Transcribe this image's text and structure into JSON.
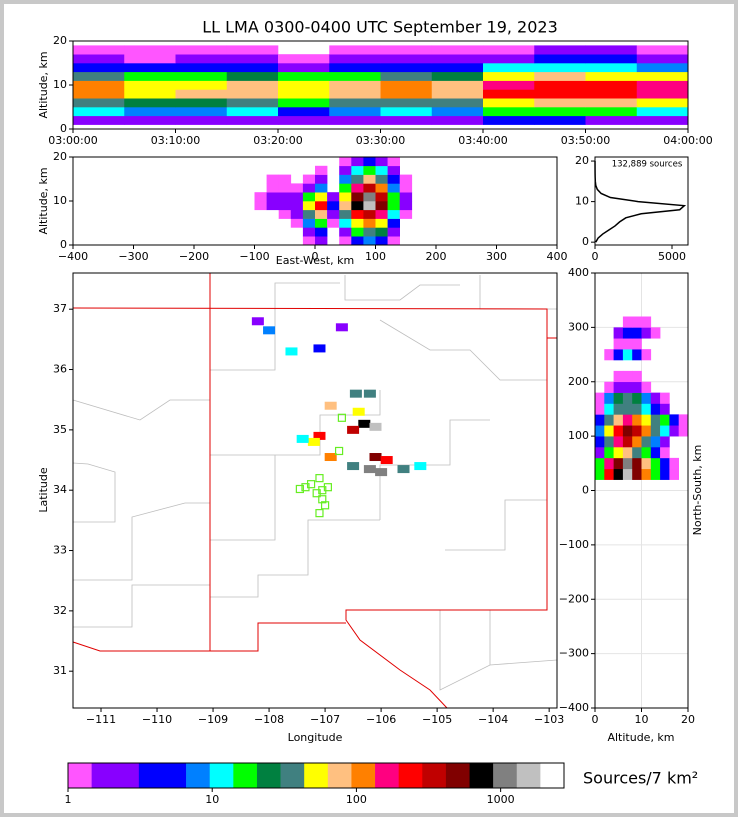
{
  "chart_data": [
    {
      "type": "heatmap",
      "title": "LL LMA 0300-0400 UTC September 19, 2023",
      "y_label": "Altitude, km",
      "xlim": [
        "03:00:00",
        "04:00:00"
      ],
      "xticks": [
        "03:00:00",
        "03:10:00",
        "03:20:00",
        "03:30:00",
        "03:40:00",
        "03:50:00",
        "04:00:00"
      ],
      "ylim": [
        0,
        20
      ],
      "yticks": [
        0,
        10,
        20
      ],
      "x": [
        "03:02:30",
        "03:07:30",
        "03:12:30",
        "03:17:30",
        "03:22:30",
        "03:27:30",
        "03:32:30",
        "03:37:30",
        "03:42:30",
        "03:47:30",
        "03:52:30",
        "03:57:30"
      ],
      "y": [
        2,
        4,
        6,
        8,
        10,
        12,
        14,
        16,
        18
      ],
      "z": [
        [
          3,
          2,
          2,
          3,
          2,
          2,
          3,
          3,
          4,
          4,
          3,
          3
        ],
        [
          12,
          8,
          8,
          10,
          6,
          8,
          10,
          8,
          15,
          20,
          15,
          12
        ],
        [
          40,
          25,
          25,
          35,
          20,
          30,
          40,
          30,
          60,
          80,
          70,
          50
        ],
        [
          120,
          60,
          70,
          90,
          50,
          80,
          110,
          90,
          200,
          250,
          220,
          160
        ],
        [
          110,
          55,
          60,
          80,
          45,
          70,
          100,
          80,
          180,
          230,
          210,
          150
        ],
        [
          30,
          20,
          20,
          25,
          15,
          20,
          30,
          25,
          50,
          70,
          60,
          45
        ],
        [
          6,
          4,
          4,
          5,
          3,
          4,
          6,
          5,
          10,
          14,
          12,
          9
        ],
        [
          2,
          1,
          2,
          2,
          1,
          2,
          2,
          2,
          3,
          4,
          4,
          3
        ],
        [
          1,
          1,
          1,
          1,
          0,
          1,
          1,
          1,
          1,
          2,
          2,
          1
        ]
      ]
    },
    {
      "type": "heatmap",
      "x_label": "East-West, km",
      "y_label": "Altitude, km",
      "xlim": [
        -400,
        400
      ],
      "xticks": [
        {
          "value": -400,
          "label": "−400"
        },
        {
          "value": -300,
          "label": "−300"
        },
        {
          "value": -200,
          "label": "−200"
        },
        {
          "value": -100,
          "label": "−100"
        },
        0,
        100,
        200,
        300,
        400
      ],
      "ylim": [
        0,
        20
      ],
      "yticks": [
        0,
        10,
        20
      ],
      "x": [
        -90,
        -70,
        -50,
        -30,
        -10,
        10,
        30,
        50,
        70,
        90,
        110,
        130,
        150
      ],
      "y": [
        1,
        3,
        5,
        7,
        9,
        11,
        13,
        15,
        17,
        19
      ],
      "z": [
        [
          0,
          0,
          0,
          0,
          1,
          3,
          0,
          1,
          5,
          8,
          5,
          1,
          0
        ],
        [
          0,
          0,
          0,
          0,
          2,
          6,
          0,
          3,
          20,
          40,
          25,
          2,
          0
        ],
        [
          0,
          0,
          0,
          1,
          8,
          20,
          1,
          10,
          60,
          100,
          60,
          5,
          0
        ],
        [
          0,
          0,
          1,
          2,
          30,
          80,
          3,
          40,
          200,
          400,
          180,
          10,
          1
        ],
        [
          1,
          2,
          3,
          3,
          60,
          200,
          5,
          80,
          800,
          1500,
          500,
          20,
          2
        ],
        [
          1,
          2,
          2,
          2,
          20,
          60,
          2,
          50,
          600,
          1200,
          400,
          15,
          2
        ],
        [
          0,
          1,
          1,
          1,
          3,
          8,
          0,
          20,
          150,
          300,
          120,
          8,
          1
        ],
        [
          0,
          1,
          1,
          0,
          1,
          2,
          0,
          8,
          40,
          80,
          40,
          4,
          1
        ],
        [
          0,
          0,
          0,
          0,
          0,
          1,
          0,
          2,
          10,
          20,
          10,
          2,
          0
        ],
        [
          0,
          0,
          0,
          0,
          0,
          0,
          0,
          1,
          3,
          5,
          3,
          1,
          0
        ]
      ]
    },
    {
      "type": "line",
      "annotation": "132,889 sources",
      "color": "#000000",
      "xlim": [
        0,
        6040
      ],
      "xticks": [
        0,
        5000
      ],
      "ylim": [
        -0.7,
        21
      ],
      "yticks": [
        0,
        10,
        20
      ],
      "x": [
        50,
        200,
        500,
        900,
        1300,
        1600,
        2000,
        3000,
        5500,
        5800,
        2800,
        1000,
        400,
        150,
        50,
        20,
        10,
        5,
        3,
        2,
        1
      ],
      "y": [
        0,
        1,
        2,
        3,
        4,
        5,
        6,
        7,
        8,
        9,
        10,
        11,
        12,
        13,
        14,
        15,
        16,
        17,
        18,
        19,
        20
      ]
    },
    {
      "type": "map",
      "x_label": "Longitude",
      "y_label": "Latitude",
      "xlim": [
        -111.5,
        -102.86
      ],
      "xticks": [
        {
          "value": -111,
          "label": "−111"
        },
        {
          "value": -110,
          "label": "−110"
        },
        {
          "value": -109,
          "label": "−109"
        },
        {
          "value": -108,
          "label": "−108"
        },
        {
          "value": -107,
          "label": "−107"
        },
        {
          "value": -106,
          "label": "−106"
        },
        {
          "value": -105,
          "label": "−105"
        },
        {
          "value": -104,
          "label": "−104"
        },
        {
          "value": -103,
          "label": "−103"
        }
      ],
      "ylim": [
        30.39,
        37.6
      ],
      "yticks": [
        31,
        32,
        33,
        34,
        35,
        36,
        37
      ],
      "density": {
        "x": [
          -108.2,
          -108.0,
          -107.6,
          -107.1,
          -106.7,
          -106.45,
          -106.2,
          -106.9,
          -106.4,
          -106.3,
          -106.1,
          -106.5,
          -107.1,
          -107.2,
          -107.4,
          -106.9,
          -106.1,
          -105.9,
          -106.2,
          -106.0,
          -105.6,
          -105.3,
          -106.5
        ],
        "y": [
          36.8,
          36.65,
          36.3,
          36.35,
          36.7,
          35.6,
          35.6,
          35.4,
          35.3,
          35.1,
          35.05,
          35.0,
          34.9,
          34.8,
          34.85,
          34.55,
          34.55,
          34.5,
          34.35,
          34.3,
          34.35,
          34.4,
          34.4
        ],
        "values": [
          3,
          8,
          10,
          5,
          2,
          40,
          30,
          80,
          60,
          800,
          1500,
          300,
          200,
          60,
          10,
          100,
          500,
          200,
          1200,
          900,
          40,
          10,
          30
        ]
      },
      "stations": {
        "color": "#66ee22",
        "x": [
          -107.35,
          -107.25,
          -107.1,
          -107.05,
          -106.95,
          -107.15,
          -107.05,
          -107.0,
          -107.1,
          -106.75,
          -106.7,
          -107.45
        ],
        "y": [
          34.05,
          34.1,
          34.2,
          34.0,
          34.05,
          33.95,
          33.85,
          33.75,
          33.62,
          34.65,
          35.2,
          34.02
        ]
      }
    },
    {
      "type": "heatmap",
      "x_label": "Altitude, km",
      "y_label": "North-South, km",
      "grid": true,
      "xlim": [
        0,
        20
      ],
      "xticks": [
        0,
        10,
        20
      ],
      "ylim": [
        -400,
        400
      ],
      "yticks": [
        {
          "value": -400,
          "label": "−400"
        },
        {
          "value": -300,
          "label": "−300"
        },
        {
          "value": -200,
          "label": "−200"
        },
        {
          "value": -100,
          "label": "−100"
        },
        0,
        100,
        200,
        300,
        400
      ],
      "x": [
        1,
        3,
        5,
        7,
        9,
        11,
        13,
        15,
        17,
        19
      ],
      "y": [
        30,
        50,
        70,
        90,
        110,
        130,
        150,
        170,
        190,
        210,
        230,
        250,
        270,
        290,
        310
      ],
      "z": [
        [
          20,
          200,
          800,
          1500,
          600,
          100,
          20,
          5,
          1,
          0
        ],
        [
          15,
          150,
          600,
          1200,
          500,
          80,
          15,
          4,
          1,
          0
        ],
        [
          3,
          20,
          50,
          80,
          40,
          15,
          5,
          1,
          0,
          0
        ],
        [
          5,
          40,
          150,
          300,
          120,
          30,
          8,
          2,
          0,
          0
        ],
        [
          8,
          60,
          200,
          500,
          300,
          100,
          40,
          10,
          3,
          1
        ],
        [
          4,
          30,
          80,
          150,
          100,
          50,
          30,
          15,
          5,
          1
        ],
        [
          1,
          10,
          30,
          40,
          30,
          10,
          5,
          2,
          0,
          0
        ],
        [
          1,
          8,
          25,
          40,
          25,
          8,
          3,
          1,
          0,
          0
        ],
        [
          0,
          1,
          2,
          3,
          2,
          1,
          0,
          0,
          0,
          0
        ],
        [
          0,
          0,
          1,
          1,
          1,
          0,
          0,
          0,
          0,
          0
        ],
        [
          0,
          0,
          0,
          0,
          0,
          0,
          0,
          0,
          0,
          0
        ],
        [
          0,
          1,
          5,
          10,
          5,
          1,
          0,
          0,
          0,
          0
        ],
        [
          0,
          0,
          1,
          1,
          1,
          0,
          0,
          0,
          0,
          0
        ],
        [
          0,
          0,
          2,
          4,
          4,
          2,
          1,
          0,
          0,
          0
        ],
        [
          0,
          0,
          0,
          1,
          1,
          1,
          0,
          0,
          0,
          0
        ]
      ]
    },
    {
      "type": "colorbar",
      "label": "Sources/7 km²",
      "log": true,
      "lim": [
        1,
        2750
      ],
      "ticks": [
        1,
        10,
        100,
        1000
      ],
      "colors": [
        "#ff55ff",
        "#8800ff",
        "#8800ff",
        "#0000ff",
        "#0000ff",
        "#0080ff",
        "#00ffff",
        "#00ff00",
        "#008040",
        "#408080",
        "#ffff00",
        "#ffc080",
        "#ff8000",
        "#ff0080",
        "#ff0000",
        "#c00000",
        "#800000",
        "#000000",
        "#808080",
        "#c0c0c0",
        "#ffffff"
      ]
    }
  ]
}
